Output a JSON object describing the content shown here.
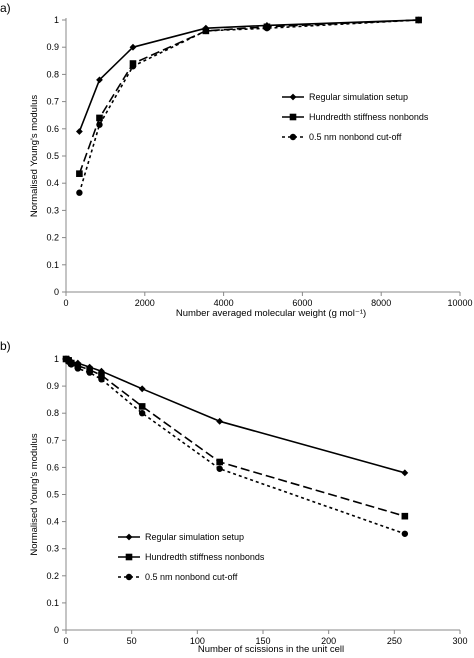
{
  "chart_data": [
    {
      "panel_label": "a)",
      "type": "line",
      "xlabel": "Number averaged molecular weight (g mol⁻¹)",
      "ylabel": "Normalised Young's modulus",
      "xlim": [
        0,
        10000
      ],
      "ylim": [
        0,
        1
      ],
      "x_ticks": [
        0,
        2000,
        4000,
        6000,
        8000,
        10000
      ],
      "x_tick_labels": [
        "0",
        "2000",
        "4000",
        "6000",
        "8000",
        "10000"
      ],
      "y_ticks": [
        0,
        0.1,
        0.2,
        0.3,
        0.4,
        0.5,
        0.6,
        0.7,
        0.8,
        0.9,
        1
      ],
      "y_tick_labels": [
        "0",
        "0.1",
        "0.2",
        "0.3",
        "0.4",
        "0.5",
        "0.6",
        "0.7",
        "0.8",
        "0.9",
        "1"
      ],
      "grid": false,
      "legend_position": "right-center",
      "series": [
        {
          "name": "Regular simulation setup",
          "marker": "diamond",
          "line": "solid",
          "x": [
            340,
            850,
            1700,
            3550,
            5100,
            8950
          ],
          "y": [
            0.59,
            0.78,
            0.9,
            0.97,
            0.98,
            1.0
          ]
        },
        {
          "name": "Hundredth stiffness nonbonds",
          "marker": "square",
          "line": "longdash",
          "x": [
            340,
            850,
            1700,
            3550,
            5100,
            8950
          ],
          "y": [
            0.435,
            0.64,
            0.84,
            0.96,
            0.975,
            1.0
          ]
        },
        {
          "name": "0.5 nm nonbond cut-off",
          "marker": "circle",
          "line": "shortdash",
          "x": [
            340,
            850,
            1700,
            3550,
            5100,
            8950
          ],
          "y": [
            0.365,
            0.615,
            0.83,
            0.96,
            0.97,
            1.0
          ]
        }
      ]
    },
    {
      "panel_label": "b)",
      "type": "line",
      "xlabel": "Number of scissions in the unit cell",
      "ylabel": "Normalised Young's modulus",
      "xlim": [
        0,
        300
      ],
      "ylim": [
        0,
        1
      ],
      "x_ticks": [
        0,
        50,
        100,
        150,
        200,
        250,
        300
      ],
      "x_tick_labels": [
        "0",
        "50",
        "100",
        "150",
        "200",
        "250",
        "300"
      ],
      "y_ticks": [
        0,
        0.1,
        0.2,
        0.3,
        0.4,
        0.5,
        0.6,
        0.7,
        0.8,
        0.9,
        1
      ],
      "y_tick_labels": [
        "0",
        "0.1",
        "0.2",
        "0.3",
        "0.4",
        "0.5",
        "0.6",
        "0.7",
        "0.8",
        "0.9",
        "1"
      ],
      "grid": false,
      "legend_position": "bottom-left",
      "series": [
        {
          "name": "Regular simulation setup",
          "marker": "diamond",
          "line": "solid",
          "x": [
            0,
            2,
            4,
            9,
            18,
            27,
            58,
            117,
            258
          ],
          "y": [
            1.0,
            1.0,
            0.99,
            0.985,
            0.97,
            0.955,
            0.89,
            0.77,
            0.58
          ]
        },
        {
          "name": "Hundredth stiffness nonbonds",
          "marker": "square",
          "line": "longdash",
          "x": [
            0,
            2,
            4,
            9,
            18,
            27,
            58,
            117,
            258
          ],
          "y": [
            1.0,
            0.995,
            0.985,
            0.975,
            0.96,
            0.94,
            0.825,
            0.62,
            0.42
          ]
        },
        {
          "name": "0.5 nm nonbond cut-off",
          "marker": "circle",
          "line": "shortdash",
          "x": [
            0,
            2,
            4,
            9,
            18,
            27,
            58,
            117,
            258
          ],
          "y": [
            1.0,
            0.99,
            0.98,
            0.965,
            0.95,
            0.925,
            0.8,
            0.595,
            0.355
          ]
        }
      ]
    }
  ]
}
